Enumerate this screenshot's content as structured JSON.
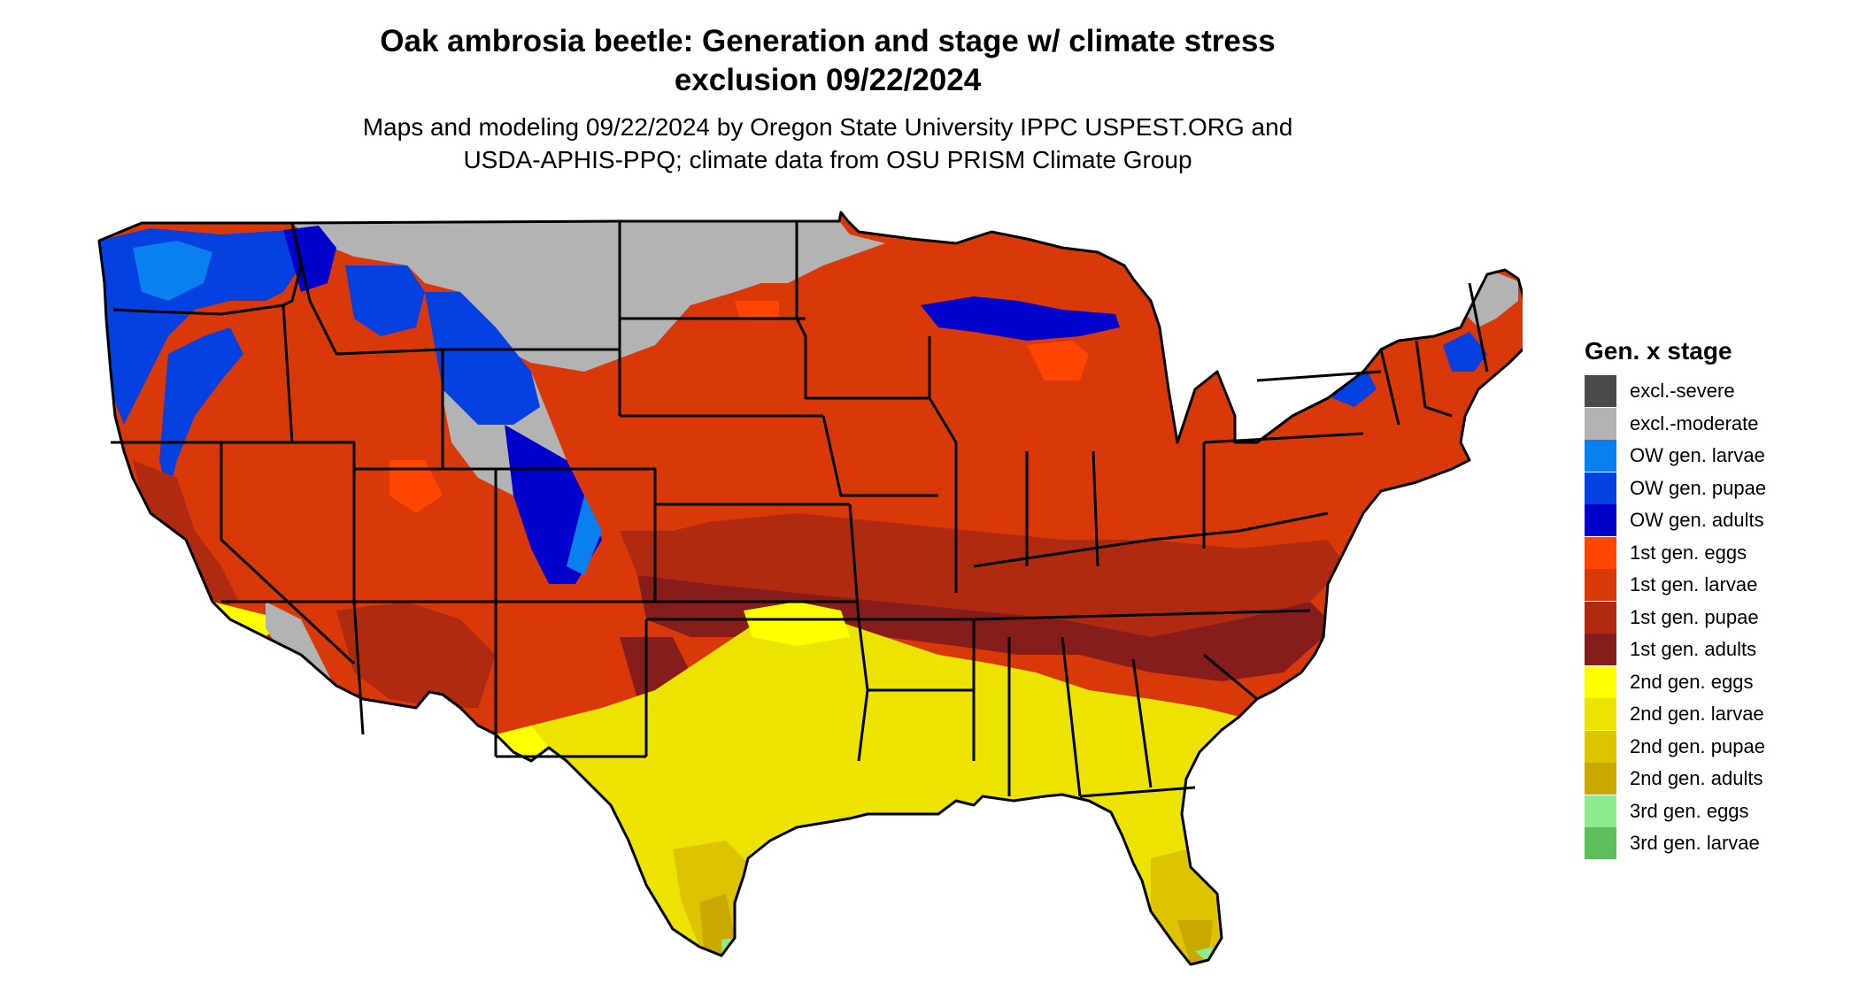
{
  "title": {
    "line1": "Oak ambrosia beetle: Generation and stage w/ climate stress",
    "line2": "exclusion 09/22/2024"
  },
  "subtitle": {
    "line1": "Maps and modeling 09/22/2024 by Oregon State University IPPC USPEST.ORG and",
    "line2": "USDA-APHIS-PPQ; climate data from OSU PRISM Climate Group"
  },
  "legend": {
    "title": "Gen. x stage",
    "items": [
      {
        "label": "excl.-severe",
        "color": "#4a4a4a"
      },
      {
        "label": "excl.-moderate",
        "color": "#b3b3b3"
      },
      {
        "label": "OW gen. larvae",
        "color": "#0a7ff0"
      },
      {
        "label": "OW gen. pupae",
        "color": "#0540e0"
      },
      {
        "label": "OW gen. adults",
        "color": "#0000cc"
      },
      {
        "label": "1st gen. eggs",
        "color": "#ff4500"
      },
      {
        "label": "1st gen. larvae",
        "color": "#d93809"
      },
      {
        "label": "1st gen. pupae",
        "color": "#b02a12"
      },
      {
        "label": "1st gen. adults",
        "color": "#861c1c"
      },
      {
        "label": "2nd gen. eggs",
        "color": "#ffff00"
      },
      {
        "label": "2nd gen. larvae",
        "color": "#ece400"
      },
      {
        "label": "2nd gen. pupae",
        "color": "#dcc400"
      },
      {
        "label": "2nd gen. adults",
        "color": "#c9a800"
      },
      {
        "label": "3rd gen. eggs",
        "color": "#8ceb8c"
      },
      {
        "label": "3rd gen. larvae",
        "color": "#5cbf5c"
      }
    ]
  }
}
